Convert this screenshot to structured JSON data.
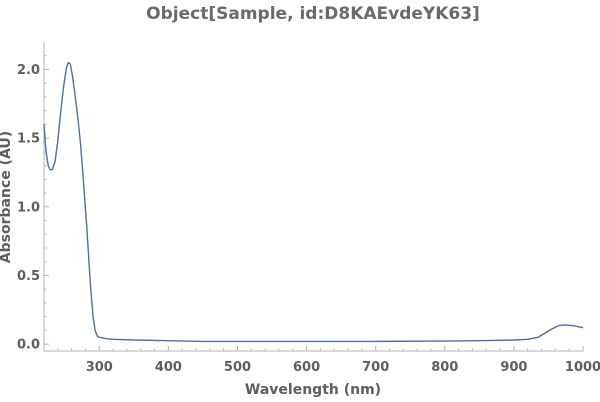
{
  "chart_data": {
    "type": "line",
    "title": "Object[Sample, id:D8KAEvdeYK63]",
    "xlabel": "Wavelength  (nm)",
    "ylabel": "Absorbance  (AU)",
    "xlim": [
      220,
      1000
    ],
    "ylim": [
      -0.05,
      2.2
    ],
    "x_ticks": [
      300,
      400,
      500,
      600,
      700,
      800,
      900,
      1000
    ],
    "x_tick_labels": [
      "300",
      "400",
      "500",
      "600",
      "700",
      "800",
      "900",
      "1000"
    ],
    "y_ticks": [
      0.0,
      0.5,
      1.0,
      1.5,
      2.0
    ],
    "y_tick_labels": [
      "0.0",
      "0.5",
      "1.0",
      "1.5",
      "2.0"
    ],
    "grid": false,
    "series": [
      {
        "color": "#4b6fa6",
        "x": [
          220,
          223,
          226,
          229,
          232,
          236,
          240,
          244,
          248,
          252,
          255,
          258,
          261,
          264,
          267,
          270,
          273,
          276,
          279,
          282,
          285,
          288,
          291,
          294,
          297,
          300,
          305,
          310,
          320,
          350,
          400,
          450,
          500,
          600,
          700,
          800,
          850,
          880,
          900,
          920,
          935,
          945,
          955,
          965,
          975,
          985,
          992,
          1000
        ],
        "y": [
          1.6,
          1.4,
          1.3,
          1.27,
          1.27,
          1.33,
          1.48,
          1.68,
          1.86,
          2.0,
          2.05,
          2.04,
          1.96,
          1.85,
          1.73,
          1.6,
          1.45,
          1.26,
          1.05,
          0.85,
          0.6,
          0.38,
          0.2,
          0.1,
          0.06,
          0.05,
          0.045,
          0.04,
          0.035,
          0.03,
          0.025,
          0.02,
          0.02,
          0.02,
          0.02,
          0.022,
          0.025,
          0.028,
          0.03,
          0.035,
          0.05,
          0.08,
          0.11,
          0.135,
          0.14,
          0.135,
          0.128,
          0.12
        ]
      }
    ]
  }
}
